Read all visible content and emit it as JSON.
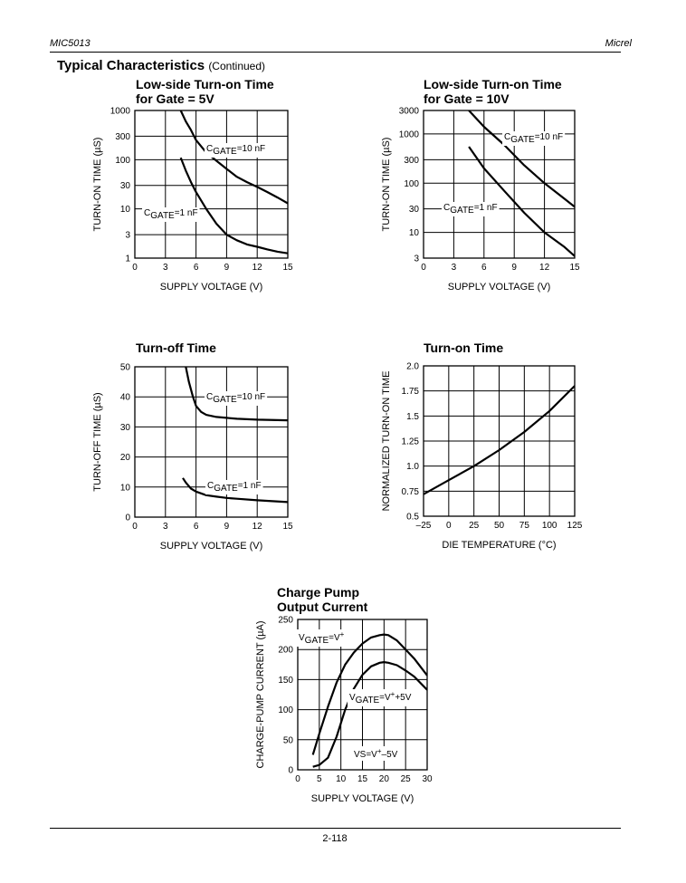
{
  "header": {
    "left": "MIC5013",
    "right": "Micrel"
  },
  "section": {
    "title": "Typical Characteristics",
    "subtitle": "(Continued)"
  },
  "footer": {
    "page": "2-118"
  },
  "chart_data": [
    {
      "id": "c1",
      "type": "line",
      "title": [
        "Low-side Turn-on Time",
        "for Gate = 5V"
      ],
      "xlabel": "SUPPLY VOLTAGE (V)",
      "ylabel": "TURN-ON TIME (µS)",
      "xlim": [
        0,
        15
      ],
      "ylim": [
        1,
        1000
      ],
      "yscale": "log",
      "xticks": [
        0,
        3,
        6,
        9,
        12,
        15
      ],
      "yticks": [
        1,
        3,
        10,
        30,
        100,
        300,
        1000
      ],
      "grid": true,
      "series": [
        {
          "name": "CGATE=10 nF",
          "x": [
            4.5,
            5,
            5.5,
            6,
            7,
            8,
            9,
            10,
            11,
            12,
            13,
            14,
            15
          ],
          "y": [
            1000,
            600,
            400,
            250,
            140,
            95,
            65,
            45,
            35,
            28,
            22,
            17,
            13
          ]
        },
        {
          "name": "CGATE=1 nF",
          "x": [
            4.5,
            5,
            5.5,
            6,
            7,
            8,
            9,
            10,
            11,
            12,
            13,
            14,
            15
          ],
          "y": [
            110,
            60,
            35,
            22,
            10,
            5,
            3,
            2.3,
            1.9,
            1.7,
            1.5,
            1.35,
            1.25
          ]
        }
      ],
      "labels": [
        {
          "series": 0,
          "text": "CGATE=10 nF",
          "base": "C",
          "sub": "GATE",
          "rest": "=10 nF"
        },
        {
          "series": 1,
          "text": "CGATE=1 nF",
          "base": "C",
          "sub": "GATE",
          "rest": "=1 nF"
        }
      ]
    },
    {
      "id": "c2",
      "type": "line",
      "title": [
        "Low-side Turn-on Time",
        "for Gate = 10V"
      ],
      "xlabel": "SUPPLY VOLTAGE (V)",
      "ylabel": "TURN-ON TIME (µS)",
      "xlim": [
        0,
        15
      ],
      "ylim": [
        3,
        3000
      ],
      "yscale": "log",
      "xticks": [
        0,
        3,
        6,
        9,
        12,
        15
      ],
      "yticks": [
        3,
        10,
        30,
        100,
        300,
        1000,
        3000
      ],
      "grid": true,
      "series": [
        {
          "name": "CGATE=10 nF",
          "x": [
            4.5,
            6,
            8,
            10,
            12,
            14,
            15
          ],
          "y": [
            3000,
            1400,
            600,
            230,
            100,
            48,
            33
          ]
        },
        {
          "name": "CGATE=1 nF",
          "x": [
            4.5,
            6,
            8,
            10,
            12,
            14,
            15
          ],
          "y": [
            550,
            200,
            70,
            25,
            10,
            5,
            3.3
          ]
        }
      ],
      "labels": [
        {
          "series": 0,
          "text": "CGATE=10 nF",
          "base": "C",
          "sub": "GATE",
          "rest": "=10 nF"
        },
        {
          "series": 1,
          "text": "CGATE=1 nF",
          "base": "C",
          "sub": "GATE",
          "rest": "=1 nF"
        }
      ]
    },
    {
      "id": "c3",
      "type": "line",
      "title": [
        "Turn-off Time"
      ],
      "xlabel": "SUPPLY VOLTAGE (V)",
      "ylabel": "TURN-OFF TIME (µS)",
      "xlim": [
        0,
        15
      ],
      "ylim": [
        0,
        50
      ],
      "yscale": "linear",
      "xticks": [
        0,
        3,
        6,
        9,
        12,
        15
      ],
      "yticks": [
        0,
        10,
        20,
        30,
        40,
        50
      ],
      "grid": true,
      "series": [
        {
          "name": "CGATE=10 nF",
          "x": [
            5,
            5.3,
            5.7,
            6,
            6.5,
            7,
            8,
            9,
            10,
            12,
            15
          ],
          "y": [
            50,
            45,
            40,
            37,
            35,
            34,
            33.3,
            33,
            32.7,
            32.4,
            32.2
          ]
        },
        {
          "name": "CGATE=1 nF",
          "x": [
            4.7,
            5,
            5.5,
            6,
            7,
            8,
            9,
            10,
            12,
            15
          ],
          "y": [
            13,
            11.5,
            9.5,
            8.5,
            7.3,
            6.8,
            6.4,
            6.1,
            5.6,
            5
          ]
        }
      ],
      "labels": [
        {
          "series": 0,
          "text": "CGATE=10 nF",
          "base": "C",
          "sub": "GATE",
          "rest": "=10 nF"
        },
        {
          "series": 1,
          "text": "CGATE=1 nF",
          "base": "C",
          "sub": "GATE",
          "rest": "=1 nF"
        }
      ]
    },
    {
      "id": "c4",
      "type": "line",
      "title": [
        "Turn-on Time"
      ],
      "xlabel": "DIE TEMPERATURE (°C)",
      "ylabel": "NORMALIZED TURN-ON TIME",
      "xlim": [
        -25,
        125
      ],
      "ylim": [
        0.5,
        2.0
      ],
      "yscale": "linear",
      "xticks": [
        -25,
        0,
        25,
        50,
        75,
        100,
        125
      ],
      "ytick_labels": [
        "0.5",
        "0.75",
        "1.0",
        "1.25",
        "1.5",
        "1.75",
        "2.0"
      ],
      "yticks": [
        0.5,
        0.75,
        1.0,
        1.25,
        1.5,
        1.75,
        2.0
      ],
      "grid": true,
      "series": [
        {
          "name": "",
          "x": [
            -25,
            0,
            25,
            50,
            75,
            100,
            125
          ],
          "y": [
            0.72,
            0.86,
            1.0,
            1.16,
            1.34,
            1.55,
            1.8
          ]
        }
      ],
      "labels": []
    },
    {
      "id": "c5",
      "type": "line",
      "title": [
        "Charge Pump",
        "Output Current"
      ],
      "xlabel": "SUPPLY VOLTAGE (V)",
      "ylabel": "CHARGE-PUMP CURRENT (µA)",
      "xlim": [
        0,
        30
      ],
      "ylim": [
        0,
        250
      ],
      "yscale": "linear",
      "xticks": [
        0,
        5,
        10,
        15,
        20,
        25,
        30
      ],
      "yticks": [
        0,
        50,
        100,
        150,
        200,
        250
      ],
      "grid": true,
      "series": [
        {
          "name": "VGATE=V+",
          "x": [
            3.5,
            5,
            7,
            9,
            11,
            13,
            15,
            17,
            19,
            20,
            21,
            23,
            25,
            27,
            30
          ],
          "y": [
            25,
            60,
            105,
            145,
            175,
            195,
            210,
            220,
            224,
            225,
            224,
            215,
            200,
            185,
            157
          ]
        },
        {
          "name": "VGATE=V++5V",
          "x": [
            3.5,
            5,
            7,
            9,
            11,
            13,
            15,
            17,
            19,
            20,
            21,
            23,
            25,
            27,
            30
          ],
          "y": [
            5,
            8,
            20,
            55,
            100,
            135,
            158,
            172,
            178,
            179,
            178,
            174,
            165,
            155,
            133
          ]
        }
      ],
      "labels": [
        {
          "series": 0,
          "text": "VGATE=V+",
          "base": "V",
          "sub": "GATE",
          "rest": "=V",
          "sup": "+"
        },
        {
          "series": 1,
          "text": "VGATE=V++5V",
          "base": "V",
          "sub": "GATE",
          "rest": "=V",
          "sup": "+",
          "tail": "+5V"
        },
        {
          "series": -1,
          "text": "VS=V+–5V",
          "base": "VS=V",
          "sup": "+",
          "tail": "–5V"
        }
      ]
    }
  ]
}
